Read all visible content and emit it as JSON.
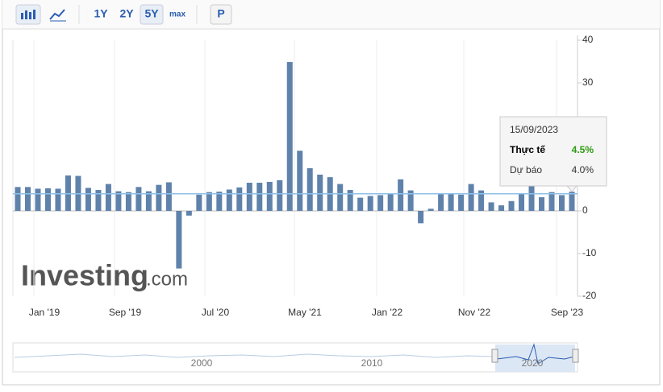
{
  "toolbar": {
    "ranges": [
      "1Y",
      "2Y",
      "5Y",
      "max"
    ],
    "button": "P"
  },
  "chart_data": {
    "type": "bar",
    "color": "#5f82ab",
    "values": [
      5.6,
      5.6,
      5.2,
      5.3,
      5.2,
      8.3,
      8.2,
      5.4,
      4.9,
      6.3,
      4.6,
      4.4,
      5.6,
      4.6,
      6.1,
      6.7,
      -13.5,
      -1.1,
      3.8,
      4.4,
      4.5,
      5.0,
      5.5,
      6.6,
      6.6,
      6.8,
      7.2,
      34.9,
      14.1,
      10.0,
      8.5,
      7.9,
      6.3,
      4.9,
      3.1,
      3.5,
      3.7,
      4.0,
      7.4,
      4.8,
      -2.9,
      0.5,
      3.9,
      4.0,
      3.8,
      6.3,
      4.8,
      2.0,
      1.3,
      2.3,
      4.0,
      6.0,
      3.2,
      4.4,
      3.7,
      4.5
    ],
    "ylim": [
      -20,
      40
    ],
    "yticks": [
      40,
      30,
      0,
      -10,
      -20
    ],
    "xtick_labels": [
      "Jan '19",
      "Sep '19",
      "Jul '20",
      "May '21",
      "Jan '22",
      "Nov '22",
      "Sep '23"
    ],
    "tooltip": {
      "date": "15/09/2023",
      "actual_label": "Thực tế",
      "actual": 4.5,
      "actual_text": "4.5%",
      "forecast_label": "Dự báo",
      "forecast": 4.0,
      "forecast_text": "4.0%"
    }
  },
  "navigator": {
    "labels": [
      "2000",
      "2010",
      "2020"
    ]
  },
  "watermark": {
    "brand": "Investing",
    "suffix": ".com"
  }
}
